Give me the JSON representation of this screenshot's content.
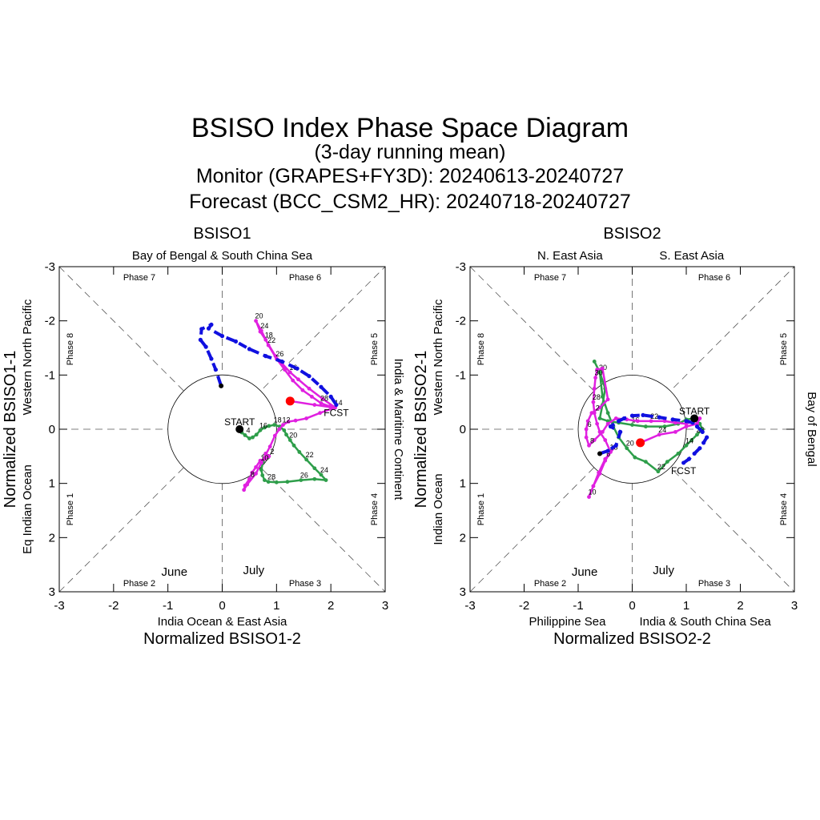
{
  "titles": {
    "main": "BSISO Index Phase Space Diagram",
    "sub": "(3-day running mean)",
    "monitor": "Monitor (GRAPES+FY3D): 20240613-20240727",
    "forecast": "Forecast (BCC_CSM2_HR): 20240718-20240727"
  },
  "colors": {
    "june": "#2e9e4a",
    "july": "#e020e0",
    "forecast": "#1010e0",
    "start": "#000000",
    "latest": "#ff0000",
    "fcst_label": "#1010e0"
  },
  "chart_data": [
    {
      "type": "line",
      "title": "BSISO1",
      "xlabel": "Normalized BSISO1-2",
      "ylabel": "Normalized BSISO1-1",
      "xlim": [
        -3,
        3
      ],
      "ylim": [
        -3,
        3
      ],
      "y_axis_inverted": true,
      "xticks": [
        "-3",
        "-2",
        "-1",
        "0",
        "1",
        "2",
        "3"
      ],
      "yticks": [
        "-3",
        "-2",
        "-1",
        "0",
        "1",
        "2",
        "3"
      ],
      "region_labels": {
        "top": "Bay of Bengal & South China Sea",
        "bottom": "India Ocean & East Asia",
        "left_inner": "Western North Pacific",
        "left_outer": "Eq Indian Ocean",
        "right": "India & Maritime Continent"
      },
      "phase_labels": [
        "Phase 1",
        "Phase 2",
        "Phase 3",
        "Phase 4",
        "Phase 5",
        "Phase 6",
        "Phase 7",
        "Phase 8"
      ],
      "legend": {
        "june": "June",
        "july": "July"
      },
      "start_label": "START",
      "fcst_label": "FCST",
      "series": [
        {
          "name": "June",
          "points": [
            [
              0.32,
              0.0
            ],
            [
              0.36,
              0.06
            ],
            [
              0.42,
              0.11
            ],
            [
              0.5,
              0.17
            ],
            [
              0.56,
              0.15
            ],
            [
              0.63,
              0.1
            ],
            [
              0.7,
              0.02
            ],
            [
              0.78,
              -0.03
            ],
            [
              0.86,
              -0.06
            ],
            [
              0.96,
              -0.08
            ],
            [
              1.06,
              -0.05
            ],
            [
              1.14,
              0.02
            ],
            [
              1.18,
              0.1
            ],
            [
              1.25,
              0.2
            ],
            [
              1.32,
              0.3
            ],
            [
              1.42,
              0.42
            ],
            [
              1.55,
              0.56
            ],
            [
              1.7,
              0.72
            ],
            [
              1.82,
              0.84
            ],
            [
              1.91,
              0.94
            ],
            [
              1.7,
              0.92
            ],
            [
              1.45,
              0.94
            ],
            [
              1.2,
              0.97
            ],
            [
              1.0,
              0.98
            ],
            [
              0.85,
              0.97
            ],
            [
              0.78,
              0.94
            ],
            [
              0.74,
              0.85
            ],
            [
              0.72,
              0.75
            ],
            [
              0.75,
              0.6
            ],
            [
              0.8,
              0.45
            ]
          ],
          "labels": [
            {
              "i": 2,
              "t": "4"
            },
            {
              "i": 6,
              "t": "16"
            },
            {
              "i": 9,
              "t": "18"
            },
            {
              "i": 13,
              "t": "20"
            },
            {
              "i": 16,
              "t": "22"
            },
            {
              "i": 18,
              "t": "24"
            },
            {
              "i": 21,
              "t": "26"
            },
            {
              "i": 24,
              "t": "28"
            },
            {
              "i": 28,
              "t": "30"
            }
          ]
        },
        {
          "name": "July",
          "points": [
            [
              0.8,
              0.45
            ],
            [
              0.86,
              0.5
            ],
            [
              0.78,
              0.55
            ],
            [
              0.7,
              0.58
            ],
            [
              0.62,
              0.7
            ],
            [
              0.55,
              0.8
            ],
            [
              0.5,
              0.92
            ],
            [
              0.42,
              1.04
            ],
            [
              0.4,
              1.12
            ],
            [
              0.46,
              1.02
            ],
            [
              0.62,
              0.82
            ],
            [
              0.72,
              0.62
            ],
            [
              0.88,
              0.32
            ],
            [
              0.97,
              0.12
            ],
            [
              1.05,
              0.0
            ],
            [
              1.12,
              -0.08
            ],
            [
              1.22,
              -0.14
            ],
            [
              1.35,
              -0.16
            ],
            [
              1.55,
              -0.2
            ],
            [
              1.8,
              -0.3
            ],
            [
              2.08,
              -0.4
            ],
            [
              1.85,
              -0.56
            ],
            [
              1.6,
              -0.75
            ],
            [
              1.4,
              -0.92
            ],
            [
              1.25,
              -1.05
            ],
            [
              0.98,
              -1.35
            ],
            [
              0.8,
              -1.65
            ],
            [
              0.7,
              -1.8
            ],
            [
              0.62,
              -2.0
            ],
            [
              0.72,
              -1.82
            ],
            [
              0.85,
              -1.55
            ],
            [
              1.0,
              -1.3
            ],
            [
              1.15,
              -1.1
            ],
            [
              1.3,
              -0.9
            ],
            [
              1.48,
              -0.72
            ],
            [
              1.65,
              -0.6
            ],
            [
              1.82,
              -0.48
            ],
            [
              1.98,
              -0.42
            ],
            [
              2.05,
              -0.4
            ],
            [
              1.7,
              -0.45
            ],
            [
              1.25,
              -0.52
            ]
          ],
          "labels": [
            {
              "i": 1,
              "t": "2"
            },
            {
              "i": 6,
              "t": "8"
            },
            {
              "i": 11,
              "t": "10"
            },
            {
              "i": 15,
              "t": "12"
            },
            {
              "i": 20,
              "t": "14"
            },
            {
              "i": 24,
              "t": "16"
            },
            {
              "i": 26,
              "t": "18"
            },
            {
              "i": 28,
              "t": "20"
            },
            {
              "i": 29,
              "t": "24"
            },
            {
              "i": 30,
              "t": "22"
            },
            {
              "i": 31,
              "t": "26"
            },
            {
              "i": 36,
              "t": "28"
            }
          ]
        },
        {
          "name": "FCST",
          "points": [
            [
              2.1,
              -0.45
            ],
            [
              2.0,
              -0.6
            ],
            [
              1.82,
              -0.78
            ],
            [
              1.6,
              -0.98
            ],
            [
              1.38,
              -1.12
            ],
            [
              1.1,
              -1.25
            ],
            [
              0.8,
              -1.35
            ],
            [
              0.5,
              -1.48
            ],
            [
              0.25,
              -1.62
            ],
            [
              0.0,
              -1.72
            ],
            [
              -0.25,
              -1.86
            ],
            [
              -0.2,
              -1.93
            ],
            [
              -0.38,
              -1.85
            ],
            [
              -0.4,
              -1.65
            ],
            [
              -0.3,
              -1.52
            ],
            [
              -0.2,
              -1.3
            ],
            [
              -0.12,
              -1.1
            ],
            [
              -0.02,
              -0.8
            ]
          ]
        }
      ],
      "start": [
        0.32,
        0.0
      ],
      "latest": [
        1.25,
        -0.52
      ]
    },
    {
      "type": "line",
      "title": "BSISO2",
      "xlabel": "Normalized BSISO2-2",
      "ylabel": "Normalized BSISO2-1",
      "xlim": [
        -3,
        3
      ],
      "ylim": [
        -3,
        3
      ],
      "y_axis_inverted": true,
      "xticks": [
        "-3",
        "-2",
        "-1",
        "0",
        "1",
        "2",
        "3"
      ],
      "yticks": [
        "-3",
        "-2",
        "-1",
        "0",
        "1",
        "2",
        "3"
      ],
      "region_labels": {
        "top_left": "N. East Asia",
        "top_right": "S. East Asia",
        "bottom_left": "Philippine Sea",
        "bottom_right": "India & South China Sea",
        "left_inner": "Western North Pacific",
        "left_outer": "Indian Ocean",
        "right": "Bay of Bengal"
      },
      "phase_labels": [
        "Phase 1",
        "Phase 2",
        "Phase 3",
        "Phase 4",
        "Phase 5",
        "Phase 6",
        "Phase 7",
        "Phase 8"
      ],
      "legend": {
        "june": "June",
        "july": "July"
      },
      "start_label": "START",
      "fcst_label": "FCST",
      "series": [
        {
          "name": "June",
          "points": [
            [
              1.15,
              -0.2
            ],
            [
              1.0,
              -0.18
            ],
            [
              0.85,
              -0.1
            ],
            [
              0.6,
              -0.05
            ],
            [
              0.25,
              -0.05
            ],
            [
              0.0,
              -0.08
            ],
            [
              -0.25,
              -0.12
            ],
            [
              -0.45,
              -0.15
            ],
            [
              -0.6,
              -0.2
            ],
            [
              -0.55,
              -0.45
            ],
            [
              -0.5,
              -0.75
            ],
            [
              -0.6,
              -1.05
            ],
            [
              -0.7,
              -1.25
            ],
            [
              -0.6,
              -1.05
            ],
            [
              -0.55,
              -0.6
            ],
            [
              -0.45,
              -0.3
            ],
            [
              -0.35,
              -0.05
            ],
            [
              -0.25,
              0.15
            ],
            [
              -0.1,
              0.35
            ],
            [
              0.05,
              0.52
            ],
            [
              0.25,
              0.6
            ],
            [
              0.48,
              0.78
            ],
            [
              0.65,
              0.6
            ],
            [
              0.85,
              0.45
            ],
            [
              1.0,
              0.3
            ],
            [
              1.1,
              0.2
            ],
            [
              1.2,
              0.1
            ],
            [
              1.3,
              0.0
            ],
            [
              1.25,
              -0.1
            ],
            [
              1.2,
              -0.15
            ]
          ],
          "labels": [
            {
              "i": 5,
              "t": "16"
            },
            {
              "i": 11,
              "t": "30"
            },
            {
              "i": 18,
              "t": "20"
            },
            {
              "i": 21,
              "t": "22"
            },
            {
              "i": 24,
              "t": "14"
            },
            {
              "i": 26,
              "t": "26"
            }
          ]
        },
        {
          "name": "July",
          "points": [
            [
              -0.3,
              0.3
            ],
            [
              -0.5,
              0.55
            ],
            [
              -0.62,
              0.8
            ],
            [
              -0.72,
              1.05
            ],
            [
              -0.8,
              1.25
            ],
            [
              -0.72,
              1.05
            ],
            [
              -0.6,
              0.82
            ],
            [
              -0.5,
              0.58
            ],
            [
              -0.4,
              0.42
            ],
            [
              -0.5,
              0.2
            ],
            [
              -0.6,
              0.05
            ],
            [
              -0.65,
              -0.1
            ],
            [
              -0.7,
              -0.3
            ],
            [
              -0.72,
              -0.5
            ],
            [
              -0.7,
              -0.75
            ],
            [
              -0.68,
              -0.95
            ],
            [
              -0.65,
              -1.1
            ],
            [
              -0.55,
              -1.12
            ],
            [
              -0.45,
              -0.55
            ],
            [
              -0.6,
              -0.4
            ],
            [
              -0.75,
              -0.3
            ],
            [
              -0.82,
              -0.15
            ],
            [
              -0.85,
              0.0
            ],
            [
              -0.85,
              0.15
            ],
            [
              -0.8,
              0.3
            ],
            [
              -0.7,
              0.2
            ],
            [
              -0.55,
              0.05
            ],
            [
              -0.45,
              -0.1
            ],
            [
              -0.3,
              -0.2
            ],
            [
              -0.1,
              -0.18
            ],
            [
              0.1,
              -0.15
            ],
            [
              0.35,
              -0.15
            ],
            [
              0.6,
              -0.15
            ],
            [
              0.8,
              -0.12
            ],
            [
              1.0,
              -0.1
            ],
            [
              1.25,
              -0.2
            ],
            [
              1.2,
              -0.1
            ],
            [
              1.0,
              -0.05
            ],
            [
              0.8,
              0.05
            ],
            [
              0.5,
              0.1
            ],
            [
              0.15,
              0.25
            ]
          ],
          "labels": [
            {
              "i": 1,
              "t": "6"
            },
            {
              "i": 4,
              "t": "10"
            },
            {
              "i": 8,
              "t": "18"
            },
            {
              "i": 12,
              "t": "2"
            },
            {
              "i": 13,
              "t": "28"
            },
            {
              "i": 15,
              "t": "30"
            },
            {
              "i": 22,
              "t": "6"
            },
            {
              "i": 24,
              "t": "8"
            },
            {
              "i": 31,
              "t": "22"
            },
            {
              "i": 39,
              "t": "24"
            }
          ]
        },
        {
          "name": "FCST",
          "points": [
            [
              0.95,
              0.62
            ],
            [
              1.05,
              0.55
            ],
            [
              1.15,
              0.45
            ],
            [
              1.25,
              0.35
            ],
            [
              1.32,
              0.25
            ],
            [
              1.38,
              0.15
            ],
            [
              1.3,
              0.05
            ],
            [
              1.2,
              -0.05
            ],
            [
              1.12,
              -0.12
            ],
            [
              1.0,
              -0.15
            ],
            [
              0.75,
              -0.18
            ],
            [
              0.5,
              -0.22
            ],
            [
              0.2,
              -0.26
            ],
            [
              0.0,
              -0.25
            ],
            [
              -0.15,
              -0.2
            ],
            [
              -0.25,
              -0.15
            ],
            [
              -0.4,
              -0.05
            ],
            [
              -0.22,
              0.05
            ],
            [
              -0.3,
              0.3
            ],
            [
              -0.45,
              0.4
            ],
            [
              -0.6,
              0.45
            ]
          ]
        }
      ],
      "start": [
        1.15,
        -0.2
      ],
      "latest": [
        0.15,
        0.25
      ]
    }
  ]
}
